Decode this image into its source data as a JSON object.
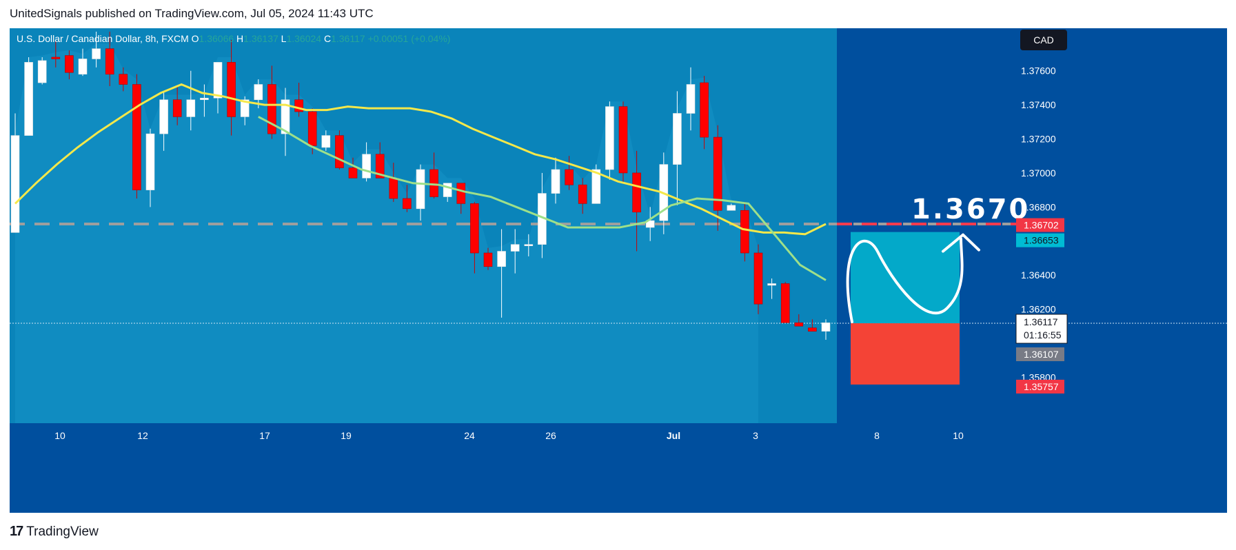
{
  "header": {
    "publisher": "UnitedSignals",
    "published_text": "published on TradingView.com, Jul 05, 2024 11:43 UTC"
  },
  "legend": {
    "symbol": "U.S. Dollar / Canadian Dollar, 8h, FXCM",
    "o_label": "O",
    "o_value": "1.36066",
    "h_label": "H",
    "h_value": "1.36137",
    "l_label": "L",
    "l_value": "1.36024",
    "c_label": "C",
    "c_value": "1.36117",
    "change": "+0.00051 (+0.04%)"
  },
  "currency_button": "CAD",
  "target_annotation": "1.3670",
  "price_tags": {
    "target": "1.36702",
    "take_profit": "1.36653",
    "current": "1.36117",
    "countdown": "01:16:55",
    "prev": "1.36107",
    "stop": "1.35757"
  },
  "footer": {
    "brand": "TradingView"
  },
  "colors": {
    "background": "#004f9e",
    "plot_area": "#0a84ba",
    "bull": "#ffffff",
    "bear": "#ff0000",
    "ma_yellow": "#f5e84a",
    "ma_green": "#9ee08a",
    "target_line": "#ff3b4e",
    "profit_box": "#03a9c9",
    "loss_box": "#f44336"
  },
  "chart_data": {
    "type": "candlestick",
    "y_axis_ticks": [
      "1.37600",
      "1.37400",
      "1.37200",
      "1.37000",
      "1.36800",
      "1.36600",
      "1.36400",
      "1.36200",
      "1.35800"
    ],
    "ylim": [
      1.3553,
      1.3785
    ],
    "x_axis_ticks": [
      "10",
      "12",
      "17",
      "19",
      "24",
      "26",
      "Jul",
      "3",
      "8",
      "10"
    ],
    "candles": [
      {
        "o": 1.3665,
        "h": 1.3735,
        "l": 1.3665,
        "c": 1.3722
      },
      {
        "o": 1.3722,
        "h": 1.3768,
        "l": 1.3722,
        "c": 1.3765
      },
      {
        "o": 1.3753,
        "h": 1.3768,
        "l": 1.3752,
        "c": 1.3766
      },
      {
        "o": 1.3768,
        "h": 1.3778,
        "l": 1.3762,
        "c": 1.3767
      },
      {
        "o": 1.3769,
        "h": 1.3772,
        "l": 1.3755,
        "c": 1.3759
      },
      {
        "o": 1.3758,
        "h": 1.3773,
        "l": 1.3757,
        "c": 1.3767
      },
      {
        "o": 1.3767,
        "h": 1.3783,
        "l": 1.3762,
        "c": 1.3773
      },
      {
        "o": 1.3773,
        "h": 1.3783,
        "l": 1.3751,
        "c": 1.3758
      },
      {
        "o": 1.3758,
        "h": 1.3762,
        "l": 1.3748,
        "c": 1.3752
      },
      {
        "o": 1.3752,
        "h": 1.3758,
        "l": 1.3685,
        "c": 1.369
      },
      {
        "o": 1.369,
        "h": 1.3726,
        "l": 1.368,
        "c": 1.3723
      },
      {
        "o": 1.3723,
        "h": 1.3748,
        "l": 1.3713,
        "c": 1.3743
      },
      {
        "o": 1.3743,
        "h": 1.3751,
        "l": 1.3728,
        "c": 1.3733
      },
      {
        "o": 1.3733,
        "h": 1.376,
        "l": 1.3725,
        "c": 1.3743
      },
      {
        "o": 1.3743,
        "h": 1.3752,
        "l": 1.3733,
        "c": 1.3744
      },
      {
        "o": 1.3744,
        "h": 1.3765,
        "l": 1.3735,
        "c": 1.3765
      },
      {
        "o": 1.3765,
        "h": 1.3778,
        "l": 1.3722,
        "c": 1.3733
      },
      {
        "o": 1.3733,
        "h": 1.3745,
        "l": 1.3728,
        "c": 1.3743
      },
      {
        "o": 1.3743,
        "h": 1.3755,
        "l": 1.3738,
        "c": 1.3752
      },
      {
        "o": 1.3752,
        "h": 1.3763,
        "l": 1.372,
        "c": 1.3723
      },
      {
        "o": 1.3723,
        "h": 1.375,
        "l": 1.371,
        "c": 1.3743
      },
      {
        "o": 1.3743,
        "h": 1.3753,
        "l": 1.3733,
        "c": 1.3736
      },
      {
        "o": 1.3736,
        "h": 1.3738,
        "l": 1.3711,
        "c": 1.3716
      },
      {
        "o": 1.3715,
        "h": 1.3725,
        "l": 1.3713,
        "c": 1.3722
      },
      {
        "o": 1.3722,
        "h": 1.3725,
        "l": 1.3702,
        "c": 1.3703
      },
      {
        "o": 1.3703,
        "h": 1.3709,
        "l": 1.3699,
        "c": 1.3697
      },
      {
        "o": 1.3697,
        "h": 1.3718,
        "l": 1.3695,
        "c": 1.3711
      },
      {
        "o": 1.3711,
        "h": 1.3718,
        "l": 1.3697,
        "c": 1.3697
      },
      {
        "o": 1.3697,
        "h": 1.3706,
        "l": 1.3683,
        "c": 1.3685
      },
      {
        "o": 1.3685,
        "h": 1.3693,
        "l": 1.3677,
        "c": 1.3679
      },
      {
        "o": 1.3679,
        "h": 1.3705,
        "l": 1.3672,
        "c": 1.3702
      },
      {
        "o": 1.3702,
        "h": 1.3712,
        "l": 1.3685,
        "c": 1.3686
      },
      {
        "o": 1.3686,
        "h": 1.3694,
        "l": 1.3683,
        "c": 1.3694
      },
      {
        "o": 1.3694,
        "h": 1.3694,
        "l": 1.3676,
        "c": 1.3682
      },
      {
        "o": 1.3682,
        "h": 1.3683,
        "l": 1.3641,
        "c": 1.3653
      },
      {
        "o": 1.3653,
        "h": 1.3656,
        "l": 1.3643,
        "c": 1.3645
      },
      {
        "o": 1.3645,
        "h": 1.3667,
        "l": 1.3615,
        "c": 1.3654
      },
      {
        "o": 1.3654,
        "h": 1.3667,
        "l": 1.3641,
        "c": 1.3658
      },
      {
        "o": 1.3658,
        "h": 1.3664,
        "l": 1.3651,
        "c": 1.3658
      },
      {
        "o": 1.3658,
        "h": 1.37,
        "l": 1.365,
        "c": 1.3688
      },
      {
        "o": 1.3688,
        "h": 1.3709,
        "l": 1.3682,
        "c": 1.3702
      },
      {
        "o": 1.3702,
        "h": 1.371,
        "l": 1.369,
        "c": 1.3693
      },
      {
        "o": 1.3693,
        "h": 1.3697,
        "l": 1.3676,
        "c": 1.3682
      },
      {
        "o": 1.3682,
        "h": 1.3705,
        "l": 1.3683,
        "c": 1.3702
      },
      {
        "o": 1.3702,
        "h": 1.3742,
        "l": 1.3696,
        "c": 1.3739
      },
      {
        "o": 1.3739,
        "h": 1.3742,
        "l": 1.3694,
        "c": 1.37
      },
      {
        "o": 1.37,
        "h": 1.3713,
        "l": 1.3654,
        "c": 1.3677
      },
      {
        "o": 1.3668,
        "h": 1.368,
        "l": 1.366,
        "c": 1.3672
      },
      {
        "o": 1.3672,
        "h": 1.3712,
        "l": 1.3664,
        "c": 1.3705
      },
      {
        "o": 1.3705,
        "h": 1.3748,
        "l": 1.3681,
        "c": 1.3735
      },
      {
        "o": 1.3735,
        "h": 1.3762,
        "l": 1.3725,
        "c": 1.3752
      },
      {
        "o": 1.3753,
        "h": 1.3757,
        "l": 1.3714,
        "c": 1.3721
      },
      {
        "o": 1.3721,
        "h": 1.3728,
        "l": 1.3666,
        "c": 1.3678
      },
      {
        "o": 1.3678,
        "h": 1.3682,
        "l": 1.3678,
        "c": 1.3681
      },
      {
        "o": 1.3678,
        "h": 1.3683,
        "l": 1.3648,
        "c": 1.3653
      },
      {
        "o": 1.3653,
        "h": 1.3658,
        "l": 1.3617,
        "c": 1.3623
      },
      {
        "o": 1.3634,
        "h": 1.3638,
        "l": 1.3626,
        "c": 1.3635
      },
      {
        "o": 1.3635,
        "h": 1.3636,
        "l": 1.3612,
        "c": 1.3612
      },
      {
        "o": 1.3612,
        "h": 1.3617,
        "l": 1.361,
        "c": 1.361
      },
      {
        "o": 1.3609,
        "h": 1.3614,
        "l": 1.3607,
        "c": 1.3607
      },
      {
        "o": 1.3607,
        "h": 1.3614,
        "l": 1.3602,
        "c": 1.3612
      }
    ],
    "ma_yellow": [
      1.3682,
      1.3694,
      1.3705,
      1.3715,
      1.3724,
      1.3732,
      1.374,
      1.3747,
      1.3752,
      1.3747,
      1.3745,
      1.3742,
      1.374,
      1.374,
      1.3737,
      1.3737,
      1.3739,
      1.3738,
      1.3738,
      1.3738,
      1.3736,
      1.3732,
      1.3726,
      1.3721,
      1.3716,
      1.3711,
      1.3708,
      1.3704,
      1.37,
      1.3695,
      1.3692,
      1.3689,
      1.3684,
      1.3679,
      1.3673,
      1.3667,
      1.3665,
      1.3665,
      1.3664,
      1.367
    ],
    "ma_green_x_from": 18,
    "ma_green": [
      1.3733,
      1.3725,
      1.3716,
      1.3709,
      1.3702,
      1.3698,
      1.3694,
      1.3693,
      1.3689,
      1.3686,
      1.368,
      1.3674,
      1.3668,
      1.3668,
      1.3668,
      1.3671,
      1.3681,
      1.3685,
      1.3684,
      1.3682,
      1.3664,
      1.3646,
      1.3637
    ],
    "target_price": 1.367,
    "take_profit_price": 1.36653,
    "entry_price": 1.36117,
    "stop_price": 1.35757
  }
}
